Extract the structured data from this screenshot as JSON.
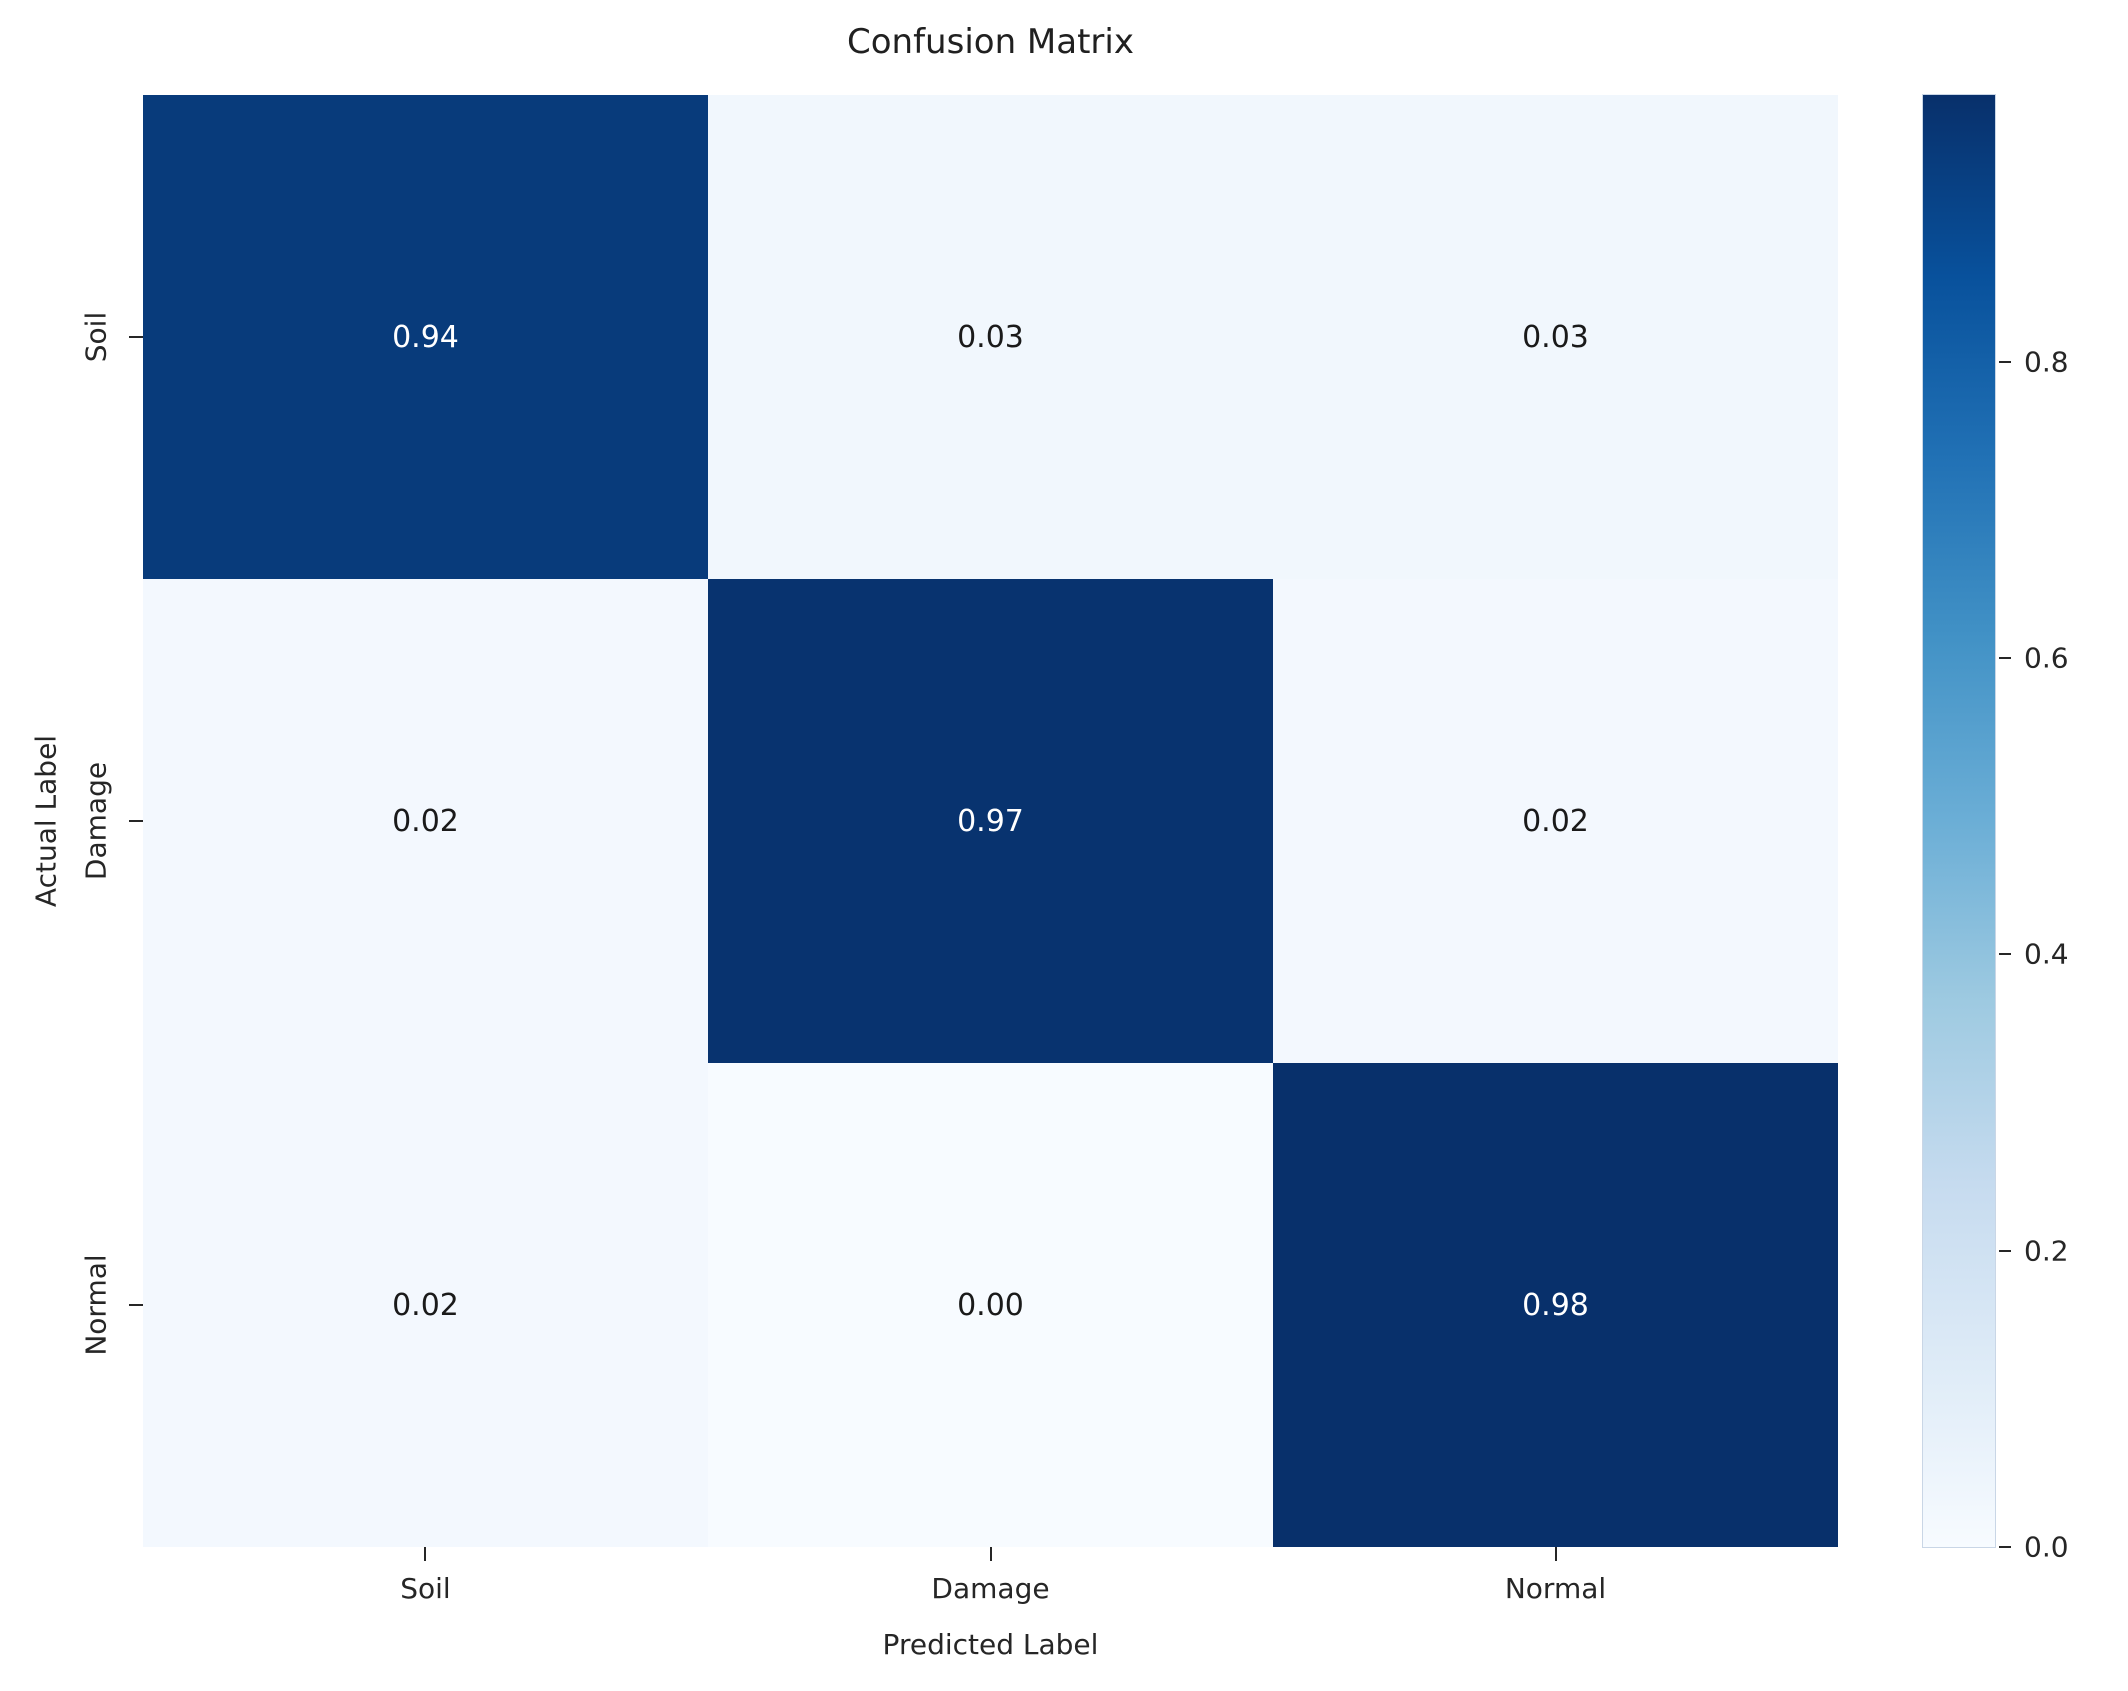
{
  "figure": {
    "title": "Confusion Matrix"
  },
  "chart_data": {
    "type": "heatmap",
    "title": "Confusion Matrix",
    "xlabel": "Predicted Label",
    "ylabel": "Actual Label",
    "x_categories": [
      "Soil",
      "Damage",
      "Normal"
    ],
    "y_categories": [
      "Soil",
      "Damage",
      "Normal"
    ],
    "matrix": [
      [
        0.94,
        0.03,
        0.03
      ],
      [
        0.02,
        0.97,
        0.02
      ],
      [
        0.02,
        0.0,
        0.98
      ]
    ],
    "cell_labels": [
      [
        "0.94",
        "0.03",
        "0.03"
      ],
      [
        "0.02",
        "0.97",
        "0.02"
      ],
      [
        "0.02",
        "0.00",
        "0.98"
      ]
    ],
    "cell_colors": [
      [
        "#083b7b",
        "#f1f7fd",
        "#f1f7fd"
      ],
      [
        "#f3f8fe",
        "#08336f",
        "#f3f8fe"
      ],
      [
        "#f3f8fe",
        "#f7fbff",
        "#08306b"
      ]
    ],
    "cell_text_colors": [
      [
        "#ffffff",
        "#1a1a1a",
        "#1a1a1a"
      ],
      [
        "#1a1a1a",
        "#ffffff",
        "#1a1a1a"
      ],
      [
        "#1a1a1a",
        "#1a1a1a",
        "#ffffff"
      ]
    ],
    "vmin": 0.0,
    "vmax": 0.98,
    "grid": false,
    "legend_position": "right-colorbar",
    "colormap": "Blues",
    "colormap_stops": [
      {
        "pos": 0.0,
        "color": "#f7fbff"
      },
      {
        "pos": 0.125,
        "color": "#deebf7"
      },
      {
        "pos": 0.25,
        "color": "#c6dbef"
      },
      {
        "pos": 0.375,
        "color": "#9ecae1"
      },
      {
        "pos": 0.5,
        "color": "#6baed6"
      },
      {
        "pos": 0.625,
        "color": "#4292c6"
      },
      {
        "pos": 0.75,
        "color": "#2171b5"
      },
      {
        "pos": 0.875,
        "color": "#08519c"
      },
      {
        "pos": 1.0,
        "color": "#08306b"
      }
    ],
    "colorbar_ticks": [
      {
        "label": "0.8",
        "value": 0.8
      },
      {
        "label": "0.6",
        "value": 0.6
      },
      {
        "label": "0.4",
        "value": 0.4
      },
      {
        "label": "0.2",
        "value": 0.2
      },
      {
        "label": "0.0",
        "value": 0.0
      }
    ]
  }
}
